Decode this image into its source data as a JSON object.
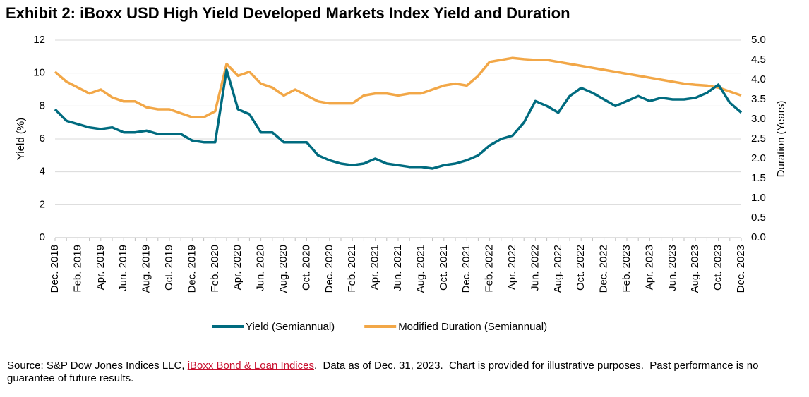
{
  "chart_data": {
    "type": "line",
    "title": "Exhibit 2: iBoxx USD High Yield Developed Markets Index Yield and Duration",
    "y_label": "Yield (%)",
    "y2_label": "Duration (Years)",
    "categories": [
      "Dec. 2018",
      null,
      "Feb. 2019",
      null,
      "Apr. 2019",
      null,
      "Jun. 2019",
      null,
      "Aug. 2019",
      null,
      "Oct. 2019",
      null,
      "Dec. 2019",
      null,
      "Feb. 2020",
      null,
      "Apr. 2020",
      null,
      "Jun. 2020",
      null,
      "Aug. 2020",
      null,
      "Oct. 2020",
      null,
      "Dec. 2020",
      null,
      "Feb. 2021",
      null,
      "Apr. 2021",
      null,
      "Jun. 2021",
      null,
      "Aug. 2021",
      null,
      "Oct. 2021",
      null,
      "Dec. 2021",
      null,
      "Feb. 2022",
      null,
      "Apr. 2022",
      null,
      "Jun. 2022",
      null,
      "Aug. 2022",
      null,
      "Oct. 2022",
      null,
      "Dec. 2022",
      null,
      "Feb. 2023",
      null,
      "Apr. 2023",
      null,
      "Jun. 2023",
      null,
      "Aug. 2023",
      null,
      "Oct. 2023",
      null,
      "Dec. 2023"
    ],
    "series": [
      {
        "name": "Yield (Semiannual)",
        "color": "#006b7f",
        "values": [
          7.8,
          7.1,
          6.9,
          6.7,
          6.6,
          6.7,
          6.4,
          6.4,
          6.5,
          6.3,
          6.3,
          6.3,
          5.9,
          5.8,
          5.8,
          10.2,
          7.8,
          7.5,
          6.4,
          6.4,
          5.8,
          5.8,
          5.8,
          5.0,
          4.7,
          4.5,
          4.4,
          4.5,
          4.8,
          4.5,
          4.4,
          4.3,
          4.3,
          4.2,
          4.4,
          4.5,
          4.7,
          5.0,
          5.6,
          6.0,
          6.2,
          7.0,
          8.3,
          8.0,
          7.6,
          8.6,
          9.1,
          8.8,
          8.4,
          8.0,
          8.3,
          8.6,
          8.3,
          8.5,
          8.4,
          8.4,
          8.5,
          8.8,
          9.3,
          8.2,
          7.6
        ]
      },
      {
        "name": "Modified Duration (Semiannual)",
        "color": "#f2a747",
        "axis": "y2",
        "values": [
          4.2,
          3.95,
          3.8,
          3.65,
          3.75,
          3.55,
          3.45,
          3.45,
          3.3,
          3.25,
          3.25,
          3.15,
          3.05,
          3.05,
          3.2,
          4.4,
          4.1,
          4.2,
          3.9,
          3.8,
          3.6,
          3.75,
          3.6,
          3.45,
          3.4,
          3.4,
          3.4,
          3.6,
          3.65,
          3.65,
          3.6,
          3.65,
          3.65,
          3.75,
          3.85,
          3.9,
          3.85,
          4.1,
          4.45,
          4.5,
          4.55,
          4.52,
          4.5,
          4.5,
          4.45,
          4.4,
          4.35,
          4.3,
          4.25,
          4.2,
          4.15,
          4.1,
          4.05,
          4.0,
          3.95,
          3.9,
          3.87,
          3.85,
          3.8,
          3.7,
          3.6
        ]
      }
    ],
    "ylim": [
      0,
      12
    ],
    "yticks": [
      0,
      2,
      4,
      6,
      8,
      10,
      12
    ],
    "y2lim": [
      0,
      5
    ],
    "y2ticks": [
      {
        "value": 0,
        "label": "0.0"
      },
      0.5,
      {
        "value": 1,
        "label": "1.0"
      },
      1.5,
      {
        "value": 2,
        "label": "2.0"
      },
      2.5,
      {
        "value": 3,
        "label": "3.0"
      },
      3.5,
      {
        "value": 4,
        "label": "4.0"
      },
      4.5,
      {
        "value": 5,
        "label": "5.0"
      }
    ],
    "grid": true,
    "legend": "bottom"
  },
  "footer": {
    "source_prefix": "Source: S&P Dow Jones Indices LLC, ",
    "source_link": "iBoxx Bond & Loan Indices",
    "source_suffix": ".  Data as of Dec. 31, 2023.  Chart is provided for illustrative purposes.  Past performance is no guarantee of future results."
  }
}
